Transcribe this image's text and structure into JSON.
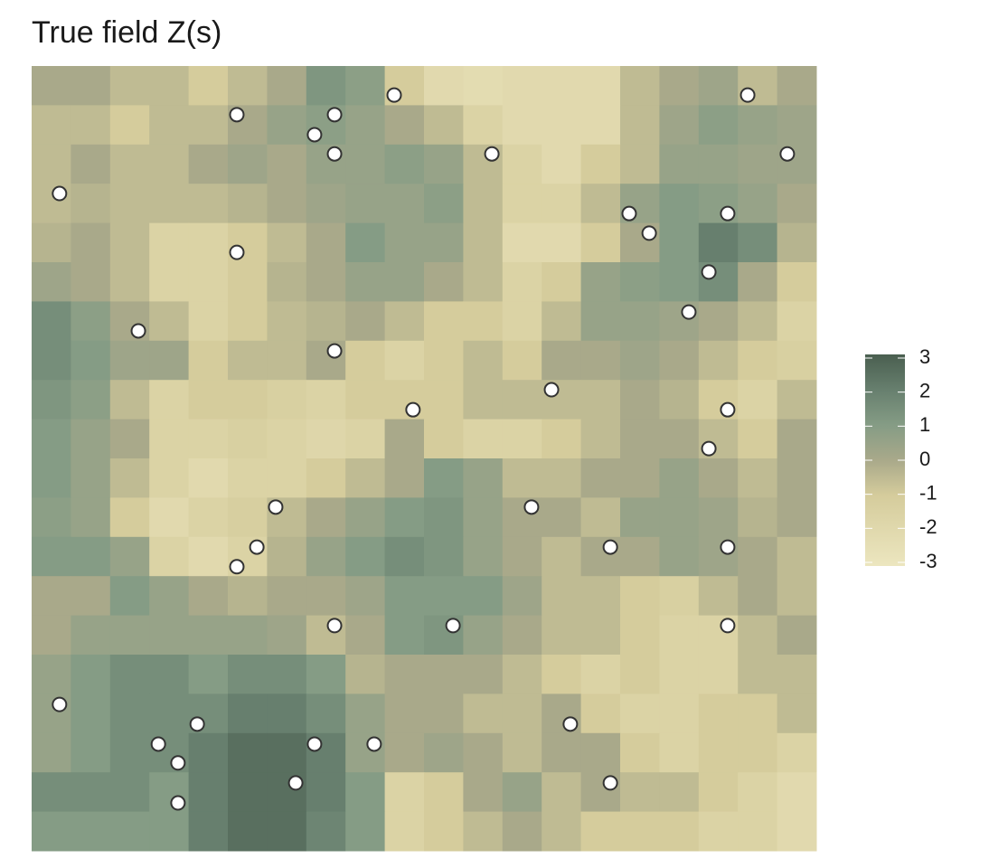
{
  "chart_data": {
    "type": "heatmap",
    "title": "True field  Z(s)",
    "xlim": [
      0,
      20
    ],
    "ylim": [
      20,
      0
    ],
    "z": [
      [
        0,
        0,
        -0.5,
        -0.5,
        -1,
        -0.5,
        0,
        1.2,
        0.8,
        -1,
        -2,
        -2.2,
        -2,
        -2,
        -2,
        -0.5,
        0,
        0.3,
        -0.5,
        0
      ],
      [
        -0.5,
        -0.5,
        -1,
        -0.5,
        -0.5,
        0,
        0.5,
        0.8,
        0.5,
        0,
        -0.5,
        -1.5,
        -2,
        -2,
        -2,
        -0.5,
        0.3,
        0.8,
        0.5,
        0.3
      ],
      [
        -0.5,
        0,
        -0.5,
        -0.5,
        0,
        0.3,
        0,
        0.5,
        0.5,
        0.8,
        0.5,
        -0.5,
        -1.5,
        -2,
        -1,
        -0.5,
        0.5,
        0.5,
        0.3,
        0.3
      ],
      [
        -0.5,
        -0.3,
        -0.5,
        -0.5,
        -0.5,
        -0.3,
        0,
        0.3,
        0.5,
        0.5,
        0.8,
        -0.5,
        -1.5,
        -1.5,
        -0.5,
        0.5,
        1,
        0.8,
        0.5,
        0
      ],
      [
        -0.3,
        0,
        -0.5,
        -1.5,
        -1.5,
        -1,
        -0.5,
        0,
        1,
        0.5,
        0.5,
        -0.5,
        -2,
        -2,
        -1,
        0,
        1,
        2,
        1.5,
        -0.3
      ],
      [
        0.3,
        0,
        -0.5,
        -1.5,
        -1.5,
        -1,
        -0.3,
        0,
        0.5,
        0.5,
        0,
        -0.5,
        -1.5,
        -1,
        0.5,
        0.8,
        1,
        1.5,
        0,
        -1
      ],
      [
        1.5,
        0.8,
        0,
        -0.5,
        -1.5,
        -1,
        -0.5,
        -0.3,
        0,
        -0.5,
        -1,
        -1,
        -1.5,
        -0.5,
        0.5,
        0.5,
        0.3,
        0,
        -0.5,
        -1.5
      ],
      [
        1.5,
        1,
        0.3,
        0.3,
        -1,
        -0.5,
        -0.5,
        0,
        -1,
        -1.5,
        -1,
        -0.5,
        -1,
        0,
        0,
        0.3,
        0,
        -0.5,
        -1,
        -1.3
      ],
      [
        1.2,
        0.8,
        -0.5,
        -1.5,
        -1,
        -1,
        -1.3,
        -1.5,
        -1,
        -1,
        -1,
        -0.5,
        -0.5,
        -0.5,
        -0.5,
        0,
        -0.3,
        -1,
        -1.5,
        -0.5
      ],
      [
        1,
        0.5,
        0,
        -1.5,
        -1.5,
        -1.3,
        -1.5,
        -1.8,
        -1.5,
        0,
        -1,
        -1.5,
        -1.5,
        -1,
        -0.5,
        0,
        0,
        -0.5,
        -1,
        0
      ],
      [
        1,
        0.5,
        -0.5,
        -1.5,
        -2,
        -1.5,
        -1.5,
        -1,
        -0.5,
        0,
        1,
        0.5,
        -0.5,
        -0.5,
        0,
        0,
        0.5,
        0,
        -0.5,
        0
      ],
      [
        0.8,
        0.5,
        -1,
        -2,
        -1.5,
        -1.2,
        -0.5,
        0,
        0.5,
        1,
        1.2,
        0.5,
        0,
        0,
        -0.5,
        0.5,
        0.5,
        0.3,
        -0.3,
        0
      ],
      [
        1,
        1,
        0.5,
        -1.5,
        -2,
        -1.5,
        -0.3,
        0.5,
        1,
        1.5,
        1.2,
        0.5,
        0,
        -0.5,
        0,
        0,
        0.5,
        0.3,
        0,
        -0.5
      ],
      [
        0,
        0,
        1,
        0.5,
        0,
        -0.3,
        0,
        0,
        0.3,
        1,
        1,
        1,
        0.3,
        -0.5,
        -0.5,
        -1,
        -1.3,
        -0.5,
        0,
        -0.5
      ],
      [
        0,
        0.5,
        0.5,
        0.5,
        0.5,
        0.5,
        0.3,
        -0.5,
        0,
        1,
        1.2,
        0.5,
        0,
        -0.5,
        -0.5,
        -1,
        -1.5,
        -1.5,
        -0.5,
        0
      ],
      [
        0.5,
        1,
        1.5,
        1.5,
        1,
        1.5,
        1.5,
        1,
        -0.3,
        0,
        0,
        0,
        -0.5,
        -1,
        -1.5,
        -1,
        -1.5,
        -1.5,
        -0.5,
        -0.5
      ],
      [
        0.5,
        1,
        1.5,
        1.5,
        1.5,
        2,
        2,
        1.5,
        0.5,
        0,
        0,
        -0.5,
        -0.5,
        0,
        -1,
        -1.5,
        -1.5,
        -1,
        -1,
        -0.5
      ],
      [
        0.5,
        1,
        1.5,
        1.5,
        2,
        2.5,
        2.5,
        2,
        0.5,
        0,
        0.3,
        0,
        -0.5,
        0,
        0,
        -1,
        -1.5,
        -1,
        -1,
        -1.5
      ],
      [
        1.5,
        1.5,
        1.5,
        1,
        2,
        2.5,
        2.5,
        2,
        1,
        -1.5,
        -1,
        0,
        0.5,
        -0.5,
        0,
        -0.5,
        -0.5,
        -1,
        -1.5,
        -2
      ],
      [
        1,
        1,
        1,
        1,
        2,
        2.5,
        2.5,
        1.8,
        1,
        -1.5,
        -1,
        -0.5,
        0,
        -0.5,
        -1,
        -1,
        -1,
        -1.5,
        -1.5,
        -2
      ]
    ],
    "zlim": [
      -3,
      3
    ],
    "palette": [
      {
        "value": -3,
        "color": "#ece6bf"
      },
      {
        "value": -1,
        "color": "#d5cc9c"
      },
      {
        "value": 0,
        "color": "#a9a98a"
      },
      {
        "value": 1,
        "color": "#859c85"
      },
      {
        "value": 2,
        "color": "#677f6e"
      },
      {
        "value": 3,
        "color": "#4a5f50"
      }
    ],
    "colorbar_ticks": [
      3,
      2,
      1,
      0,
      -1,
      -2,
      -3
    ],
    "legend": "right",
    "points": {
      "color": "#ffffff",
      "edge": "#333333",
      "x": [
        9.24,
        18.25,
        5.23,
        7.72,
        7.21,
        7.72,
        11.73,
        19.26,
        0.71,
        15.23,
        17.74,
        15.74,
        5.23,
        17.26,
        16.75,
        2.72,
        7.72,
        13.25,
        9.72,
        17.74,
        17.26,
        6.22,
        12.74,
        5.74,
        14.75,
        17.74,
        5.23,
        7.72,
        10.74,
        17.74,
        0.71,
        4.22,
        13.73,
        3.23,
        7.21,
        8.73,
        3.73,
        6.73,
        14.75,
        3.73
      ],
      "y": [
        0.74,
        0.74,
        1.24,
        1.24,
        1.75,
        2.24,
        2.24,
        2.24,
        3.25,
        3.76,
        3.76,
        4.26,
        4.75,
        5.25,
        6.27,
        6.75,
        7.26,
        8.25,
        8.76,
        8.76,
        9.75,
        11.24,
        11.24,
        12.26,
        12.26,
        12.26,
        12.76,
        14.26,
        14.26,
        14.26,
        16.27,
        16.77,
        16.77,
        17.28,
        17.28,
        17.28,
        17.76,
        18.27,
        18.27,
        18.78
      ]
    }
  }
}
